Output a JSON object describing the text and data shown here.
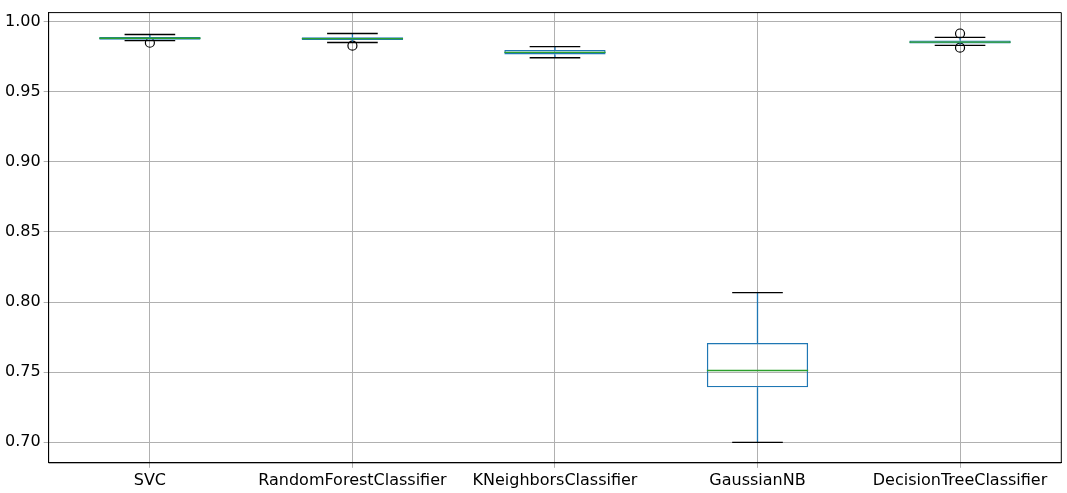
{
  "chart_data": {
    "type": "box",
    "categories": [
      "SVC",
      "RandomForestClassifier",
      "KNeighborsClassifier",
      "GaussianNB",
      "DecisionTreeClassifier"
    ],
    "boxes": [
      {
        "low": 0.9863,
        "q1": 0.987,
        "median": 0.988,
        "q3": 0.9889,
        "high": 0.9907,
        "outliers": [
          0.9848
        ]
      },
      {
        "low": 0.985,
        "q1": 0.9867,
        "median": 0.9878,
        "q3": 0.9888,
        "high": 0.9914,
        "outliers": [
          0.9827
        ]
      },
      {
        "low": 0.9741,
        "q1": 0.9765,
        "median": 0.978,
        "q3": 0.9796,
        "high": 0.9821
      },
      {
        "low": 0.7,
        "q1": 0.7393,
        "median": 0.7512,
        "q3": 0.7708,
        "high": 0.8067
      },
      {
        "low": 0.9829,
        "q1": 0.9843,
        "median": 0.9853,
        "q3": 0.9864,
        "high": 0.9886,
        "outliers": [
          0.9914,
          0.9813
        ]
      }
    ],
    "color": "#1f77b4",
    "ylim": [
      0.6854,
      1.0063
    ],
    "yticks": [
      {
        "value": 0.7,
        "label": "0.70"
      },
      {
        "value": 0.75,
        "label": "0.75"
      },
      {
        "value": 0.8,
        "label": "0.80"
      },
      {
        "value": 0.85,
        "label": "0.85"
      },
      {
        "value": 0.9,
        "label": "0.90"
      },
      {
        "value": 0.95,
        "label": "0.95"
      },
      {
        "value": 1.0,
        "label": "1.00"
      }
    ],
    "grid": true
  }
}
